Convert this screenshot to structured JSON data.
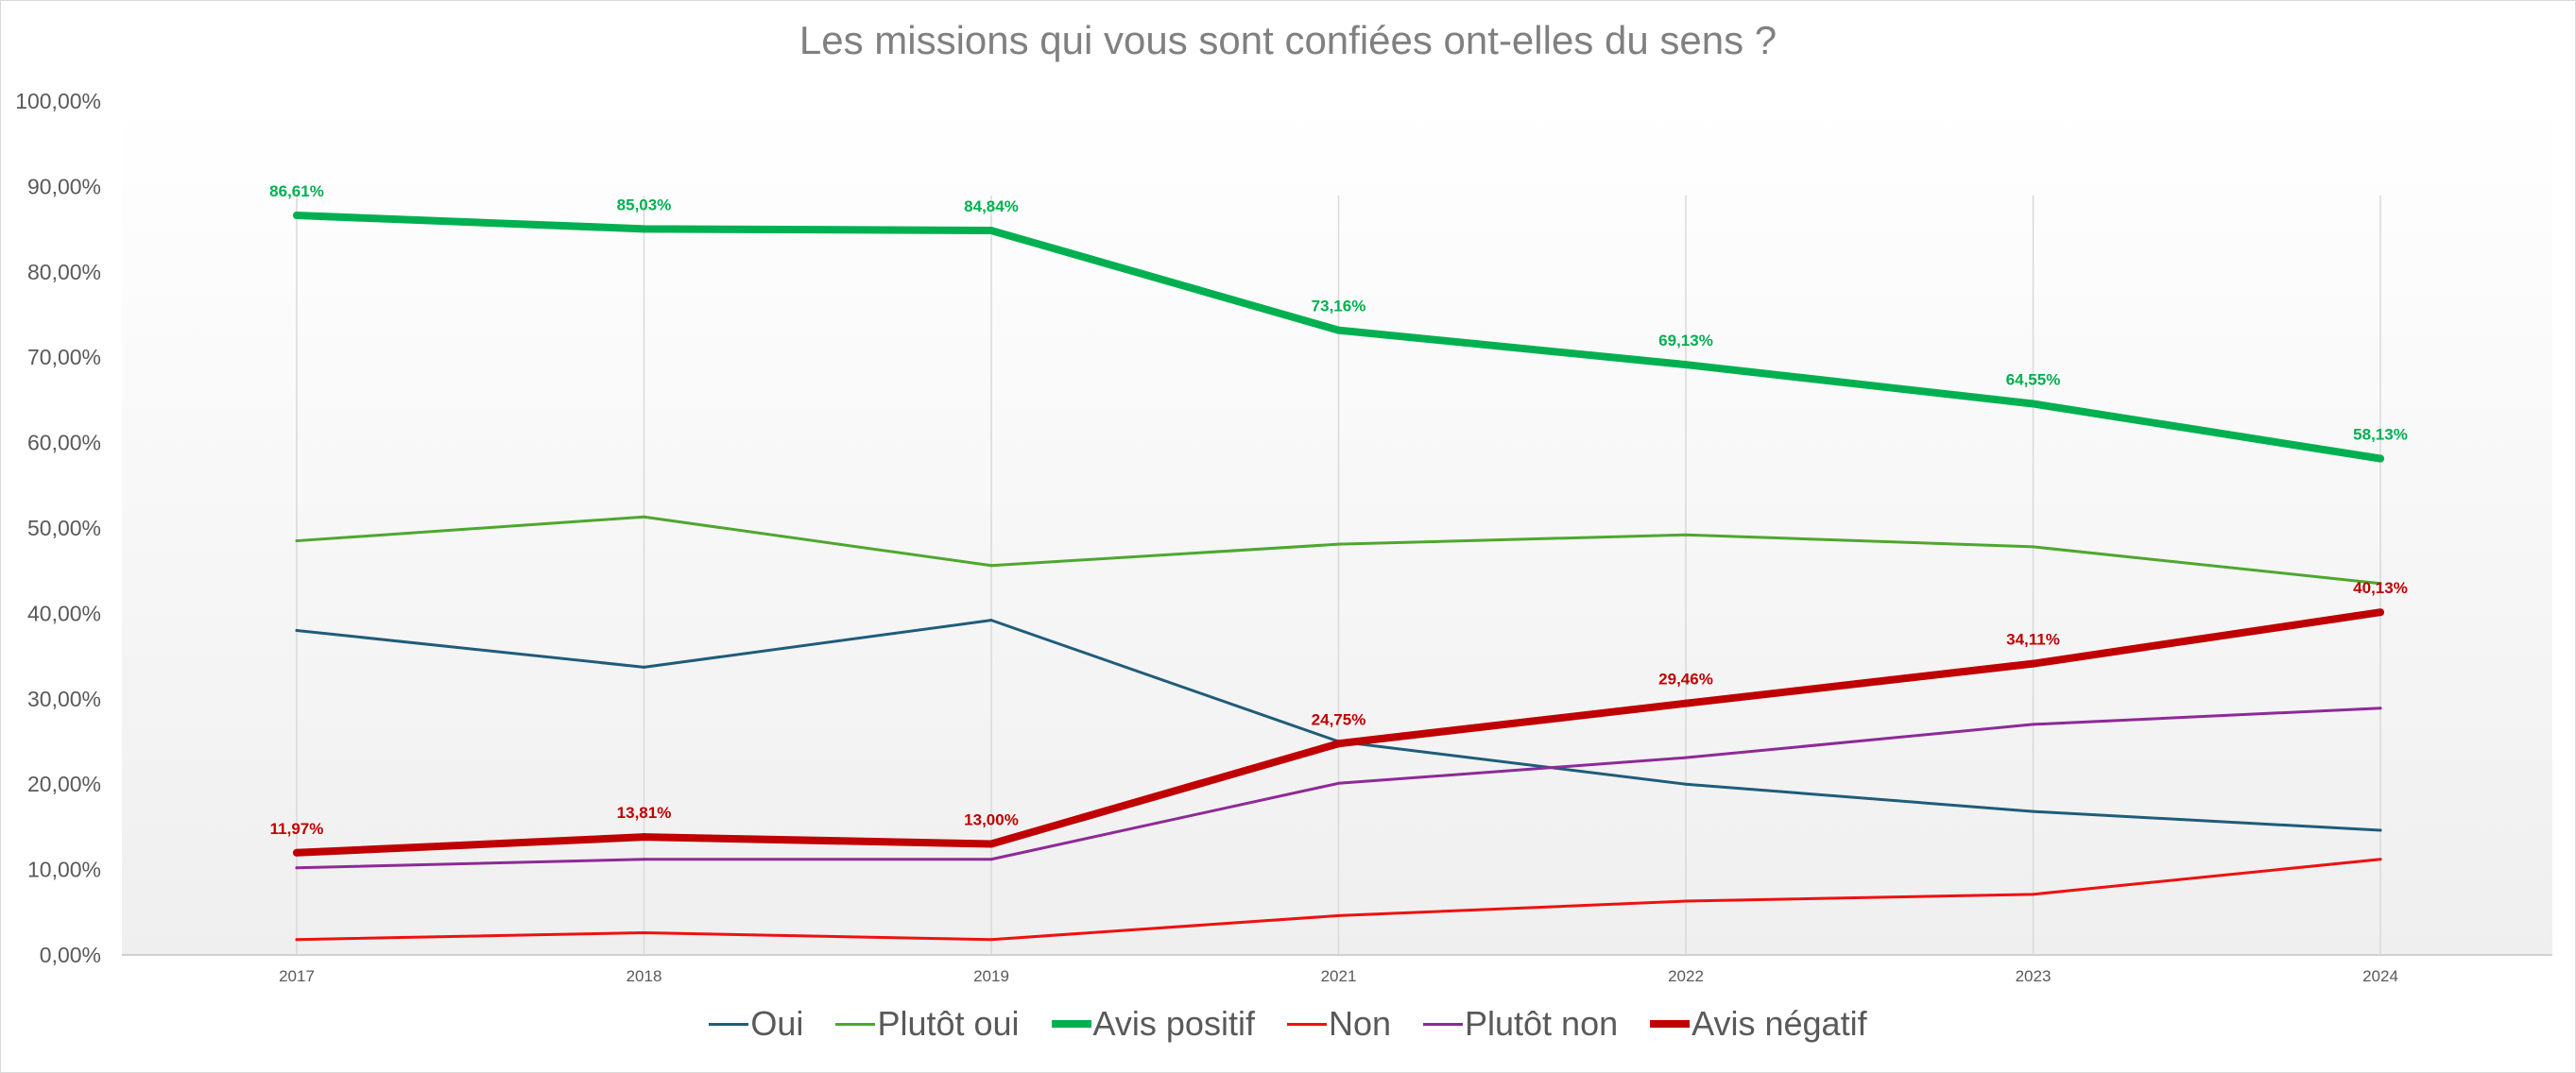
{
  "chart_data": {
    "type": "line",
    "title": "Les missions qui vous sont confiées ont-elles du sens ?",
    "categories": [
      "2017",
      "2018",
      "2019",
      "2021",
      "2022",
      "2023",
      "2024"
    ],
    "ylim": [
      0,
      100
    ],
    "ytick_labels": [
      "0,00%",
      "10,00%",
      "20,00%",
      "30,00%",
      "40,00%",
      "50,00%",
      "60,00%",
      "70,00%",
      "80,00%",
      "90,00%",
      "100,00%"
    ],
    "grid": "vertical",
    "legend_position": "bottom",
    "series": [
      {
        "name": "Oui",
        "color": "#1f5c7a",
        "width": "thin",
        "values": [
          38.0,
          33.7,
          39.2,
          25.0,
          20.0,
          16.8,
          14.6
        ],
        "labels": null
      },
      {
        "name": "Plutôt oui",
        "color": "#4ea72e",
        "width": "thin",
        "values": [
          48.5,
          51.3,
          45.6,
          48.1,
          49.2,
          47.8,
          43.5
        ],
        "labels": null
      },
      {
        "name": "Avis positif",
        "color": "#00b050",
        "width": "thick",
        "values": [
          86.61,
          85.03,
          84.84,
          73.16,
          69.13,
          64.55,
          58.13
        ],
        "labels": [
          "86,61%",
          "85,03%",
          "84,84%",
          "73,16%",
          "69,13%",
          "64,55%",
          "58,13%"
        ]
      },
      {
        "name": "Non",
        "color": "#ee1111",
        "width": "thin",
        "values": [
          1.8,
          2.6,
          1.8,
          4.6,
          6.3,
          7.1,
          11.2
        ],
        "labels": null
      },
      {
        "name": "Plutôt non",
        "color": "#8e2a96",
        "width": "thin",
        "values": [
          10.2,
          11.2,
          11.2,
          20.1,
          23.1,
          27.0,
          28.9
        ],
        "labels": null
      },
      {
        "name": "Avis négatif",
        "color": "#c00000",
        "width": "thick",
        "values": [
          11.97,
          13.81,
          13.0,
          24.75,
          29.46,
          34.11,
          40.13
        ],
        "labels": [
          "11,97%",
          "13,81%",
          "13,00%",
          "24,75%",
          "29,46%",
          "34,11%",
          "40,13%"
        ]
      }
    ]
  }
}
